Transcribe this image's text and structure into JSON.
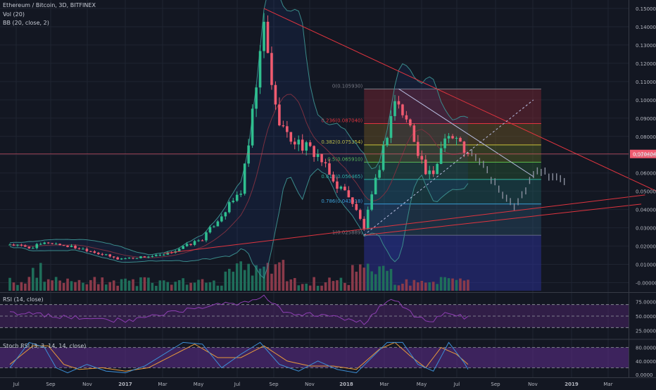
{
  "header": {
    "symbol": "Ethereum / Bitcoin, 3D, BITFINEX",
    "vol_label": "Vol (20)",
    "bb_label": "BB (20, close, 2)",
    "rsi_label": "RSI (14, close)",
    "stoch_label": "Stoch RSI (3, 3, 14, 14, close)"
  },
  "chart_data": [
    {
      "type": "line",
      "title": "",
      "y_ticks": [
        "0.150000",
        "0.140000",
        "0.130000",
        "0.120000",
        "0.110000",
        "0.100000",
        "0.090000",
        "0.080000",
        "0.070000",
        "0.060000",
        "0.050000",
        "0.040000",
        "0.030000",
        "0.020000",
        "0.010000",
        "-0.000000"
      ],
      "x_ticks": [
        "Jul",
        "Sep",
        "Nov",
        "2017",
        "Mar",
        "May",
        "Jul",
        "Sep",
        "Nov",
        "2018",
        "Mar",
        "May",
        "Jul",
        "Sep",
        "Nov",
        "2019",
        "Mar"
      ],
      "ylim": [
        -0.004,
        0.153
      ],
      "price_keypoints": {
        "t": [
          0,
          5,
          10,
          20,
          28,
          40,
          50,
          60,
          62,
          66,
          69,
          72,
          76,
          80,
          84,
          88,
          92,
          95,
          100,
          104,
          108,
          110,
          113,
          116,
          119
        ],
        "close": [
          0.021,
          0.019,
          0.022,
          0.018,
          0.013,
          0.015,
          0.024,
          0.05,
          0.075,
          0.14,
          0.095,
          0.08,
          0.075,
          0.07,
          0.055,
          0.048,
          0.03,
          0.055,
          0.1,
          0.085,
          0.06,
          0.058,
          0.082,
          0.078,
          0.0704
        ]
      },
      "projection_keypoints": {
        "t": [
          119,
          123,
          127,
          131,
          133,
          137,
          141,
          144
        ],
        "value": [
          0.0704,
          0.065,
          0.05,
          0.042,
          0.048,
          0.062,
          0.058,
          0.054
        ]
      },
      "last_price": "0.070404",
      "fibonacci": {
        "levels": [
          {
            "label": "0(0.105930)",
            "value": 0.10593
          },
          {
            "label": "0.236(0.087040)",
            "value": 0.08704
          },
          {
            "label": "0.382(0.075354)",
            "value": 0.075354
          },
          {
            "label": "0.5(0.065910)",
            "value": 0.06591
          },
          {
            "label": "0.618(0.056465)",
            "value": 0.056465
          },
          {
            "label": "0.786(0.043018)",
            "value": 0.043018
          },
          {
            "label": "1(0.025889)",
            "value": 0.025889
          }
        ],
        "zone_colors": [
          "#a12a3a",
          "#8d6b24",
          "#6f7c25",
          "#2f6b3a",
          "#1f6b6b",
          "#2f5b7a"
        ]
      },
      "trendlines": [
        {
          "t": [
            66,
            168
          ],
          "value": [
            0.15,
            0.05
          ],
          "color": "#e0343f"
        },
        {
          "t": [
            40,
            165
          ],
          "value": [
            0.016,
            0.048
          ],
          "color": "#e0343f"
        },
        {
          "t": [
            92,
            164
          ],
          "value": [
            0.026,
            0.043
          ],
          "color": "#e0343f"
        },
        {
          "t": [
            101,
            136
          ],
          "value": [
            0.106,
            0.058
          ],
          "color": "#b8bde0"
        },
        {
          "t": [
            92,
            136
          ],
          "value": [
            0.026,
            0.1
          ],
          "color": "#b8bde0"
        }
      ],
      "colors": {
        "up": "#2fbf8f",
        "down": "#f05b70",
        "last_price": "#f05b70"
      }
    },
    {
      "type": "line",
      "title": "RSI (14, close)",
      "y_ticks": [
        "75.0000",
        "50.0000",
        "25.0000"
      ],
      "ylim": [
        12,
        88
      ],
      "band": [
        30,
        70
      ],
      "keypoints": {
        "t": [
          0,
          15,
          30,
          45,
          55,
          60,
          66,
          72,
          80,
          88,
          92,
          97,
          100,
          106,
          110,
          114,
          119
        ],
        "value": [
          56,
          48,
          42,
          60,
          72,
          70,
          83,
          55,
          52,
          45,
          38,
          72,
          80,
          45,
          42,
          58,
          46
        ]
      },
      "colors": {
        "line": "#8e3fb3",
        "band": "#4a2566"
      }
    },
    {
      "type": "line",
      "title": "Stoch RSI (3, 3, 14, 14, close)",
      "y_ticks": [
        "80.0000",
        "40.0000",
        "0.0000"
      ],
      "ylim": [
        0,
        100
      ],
      "band": [
        20,
        80
      ],
      "k_keypoints": {
        "t": [
          0,
          5,
          9,
          12,
          15,
          20,
          25,
          30,
          35,
          40,
          45,
          50,
          55,
          60,
          65,
          70,
          75,
          80,
          85,
          90,
          94,
          98,
          102,
          106,
          110,
          114,
          118,
          119
        ],
        "value": [
          20,
          95,
          80,
          20,
          5,
          30,
          10,
          5,
          25,
          60,
          95,
          90,
          20,
          60,
          95,
          30,
          10,
          40,
          15,
          5,
          50,
          95,
          95,
          30,
          10,
          95,
          35,
          15
        ]
      },
      "d_keypoints": {
        "t": [
          0,
          6,
          10,
          14,
          18,
          24,
          30,
          36,
          42,
          48,
          54,
          60,
          66,
          72,
          78,
          84,
          90,
          96,
          100,
          104,
          108,
          112,
          116,
          119
        ],
        "value": [
          30,
          85,
          85,
          30,
          15,
          20,
          10,
          20,
          55,
          90,
          50,
          50,
          85,
          40,
          25,
          25,
          15,
          75,
          95,
          55,
          20,
          80,
          60,
          30
        ]
      },
      "colors": {
        "k": "#3d8fd6",
        "d": "#e89a3c",
        "band": "#5a2b86"
      }
    }
  ]
}
